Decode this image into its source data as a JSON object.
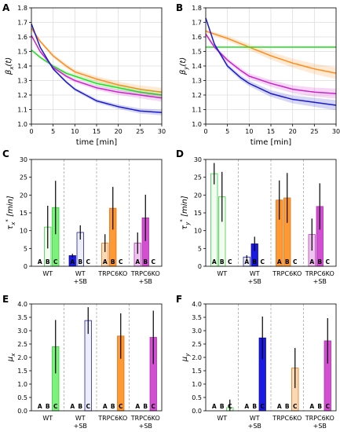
{
  "chart_data": [
    {
      "panel": "A",
      "type": "line",
      "xlabel": "time [min]",
      "ylabel": "β_x(t)",
      "xlim": [
        0,
        30
      ],
      "ylim": [
        1.0,
        1.8
      ],
      "xticks": [
        "0",
        "5",
        "10",
        "15",
        "20",
        "25",
        "30"
      ],
      "yticks": [
        "1.0",
        "1.1",
        "1.2",
        "1.3",
        "1.4",
        "1.5",
        "1.6",
        "1.7",
        "1.8"
      ],
      "grid": true,
      "series": [
        {
          "color": "#ff8c1a",
          "points": [
            [
              0,
              1.66
            ],
            [
              2,
              1.57
            ],
            [
              5,
              1.47
            ],
            [
              8,
              1.4
            ],
            [
              10,
              1.36
            ],
            [
              15,
              1.31
            ],
            [
              20,
              1.27
            ],
            [
              25,
              1.24
            ],
            [
              30,
              1.22
            ]
          ],
          "band": 0.03
        },
        {
          "color": "#22dd22",
          "points": [
            [
              0,
              1.51
            ],
            [
              2,
              1.46
            ],
            [
              5,
              1.4
            ],
            [
              8,
              1.35
            ],
            [
              10,
              1.33
            ],
            [
              15,
              1.28
            ],
            [
              20,
              1.25
            ],
            [
              25,
              1.22
            ],
            [
              30,
              1.2
            ]
          ],
          "band": 0.025
        },
        {
          "color": "#cc22cc",
          "points": [
            [
              0,
              1.61
            ],
            [
              2,
              1.5
            ],
            [
              5,
              1.39
            ],
            [
              8,
              1.33
            ],
            [
              10,
              1.3
            ],
            [
              15,
              1.25
            ],
            [
              20,
              1.22
            ],
            [
              25,
              1.2
            ],
            [
              30,
              1.18
            ]
          ],
          "band": 0.025
        },
        {
          "color": "#1a1acc",
          "points": [
            [
              0,
              1.69
            ],
            [
              2,
              1.53
            ],
            [
              5,
              1.38
            ],
            [
              8,
              1.29
            ],
            [
              10,
              1.24
            ],
            [
              15,
              1.16
            ],
            [
              20,
              1.12
            ],
            [
              25,
              1.09
            ],
            [
              30,
              1.08
            ]
          ],
          "band": 0.02
        }
      ]
    },
    {
      "panel": "B",
      "type": "line",
      "xlabel": "time [min]",
      "ylabel": "β_y(t)",
      "xlim": [
        0,
        30
      ],
      "ylim": [
        1.0,
        1.8
      ],
      "xticks": [
        "0",
        "5",
        "10",
        "15",
        "20",
        "25",
        "30"
      ],
      "yticks": [
        "1.0",
        "1.1",
        "1.2",
        "1.3",
        "1.4",
        "1.5",
        "1.6",
        "1.7",
        "1.8"
      ],
      "grid": true,
      "series": [
        {
          "color": "#ff8c1a",
          "points": [
            [
              0,
              1.64
            ],
            [
              5,
              1.59
            ],
            [
              10,
              1.53
            ],
            [
              15,
              1.47
            ],
            [
              20,
              1.42
            ],
            [
              25,
              1.38
            ],
            [
              30,
              1.35
            ]
          ],
          "band": 0.04
        },
        {
          "color": "#22dd22",
          "points": [
            [
              0,
              1.53
            ],
            [
              30,
              1.53
            ]
          ],
          "band": 0.005
        },
        {
          "color": "#cc22cc",
          "points": [
            [
              0,
              1.62
            ],
            [
              2,
              1.53
            ],
            [
              5,
              1.44
            ],
            [
              8,
              1.37
            ],
            [
              10,
              1.33
            ],
            [
              15,
              1.28
            ],
            [
              20,
              1.24
            ],
            [
              25,
              1.22
            ],
            [
              30,
              1.21
            ]
          ],
          "band": 0.035
        },
        {
          "color": "#1a1acc",
          "points": [
            [
              0,
              1.73
            ],
            [
              2,
              1.55
            ],
            [
              5,
              1.4
            ],
            [
              8,
              1.32
            ],
            [
              10,
              1.28
            ],
            [
              15,
              1.21
            ],
            [
              20,
              1.17
            ],
            [
              25,
              1.15
            ],
            [
              30,
              1.13
            ]
          ],
          "band": 0.035
        }
      ]
    },
    {
      "panel": "C",
      "type": "bar",
      "ylabel": "τ_x* [min]",
      "ylim": [
        0,
        30
      ],
      "yticks": [
        "0",
        "5",
        "10",
        "15",
        "20",
        "25",
        "30"
      ],
      "groups": [
        "WT",
        "WT\n+SB",
        "TRPC6KO",
        "TRPC6KO\n+SB"
      ],
      "bar_letters": [
        "A",
        "B",
        "C"
      ],
      "values": [
        [
          0,
          11,
          16.5
        ],
        [
          3,
          9.5,
          0
        ],
        [
          6.5,
          16.3,
          0
        ],
        [
          6.5,
          13.6,
          0
        ]
      ],
      "errors": [
        [
          0,
          6,
          7.5
        ],
        [
          0.5,
          2,
          0
        ],
        [
          2.5,
          6,
          0
        ],
        [
          3,
          6.5,
          0
        ]
      ]
    },
    {
      "panel": "D",
      "type": "bar",
      "ylabel": "τ_y* [min]",
      "ylim": [
        0,
        30
      ],
      "yticks": [
        "0",
        "5",
        "10",
        "15",
        "20",
        "25",
        "30"
      ],
      "groups": [
        "WT",
        "WT\n+SB",
        "TRPC6KO",
        "TRPC6KO\n+SB"
      ],
      "bar_letters": [
        "A",
        "B",
        "C"
      ],
      "values": [
        [
          26,
          19.5,
          0
        ],
        [
          2.6,
          6.3,
          0
        ],
        [
          18.6,
          19.2,
          0
        ],
        [
          8.9,
          16.8,
          0
        ]
      ],
      "errors": [
        [
          3,
          7,
          0
        ],
        [
          0.5,
          2,
          0
        ],
        [
          5.5,
          7,
          0
        ],
        [
          4.5,
          6.5,
          0
        ]
      ]
    },
    {
      "panel": "E",
      "type": "bar",
      "ylabel": "μ_x",
      "ylim": [
        0,
        4.0
      ],
      "yticks": [
        "0.0",
        "0.5",
        "1.0",
        "1.5",
        "2.0",
        "2.5",
        "3.0",
        "3.5",
        "4.0"
      ],
      "groups": [
        "WT",
        "WT\n+SB",
        "TRPC6KO",
        "TRPC6KO\n+SB"
      ],
      "bar_letters": [
        "A",
        "B",
        "C"
      ],
      "values": [
        [
          0,
          0,
          2.4
        ],
        [
          0,
          0,
          3.38
        ],
        [
          0,
          0,
          2.8
        ],
        [
          0,
          0,
          2.75
        ]
      ],
      "errors": [
        [
          0,
          0,
          1.0
        ],
        [
          0,
          0,
          0.5
        ],
        [
          0,
          0,
          0.85
        ],
        [
          0,
          0,
          1.0
        ]
      ]
    },
    {
      "panel": "F",
      "type": "bar",
      "ylabel": "μ_y",
      "ylim": [
        0,
        4.0
      ],
      "yticks": [
        "0.0",
        "0.5",
        "1.0",
        "1.5",
        "2.0",
        "2.5",
        "3.0",
        "3.5",
        "4.0"
      ],
      "groups": [
        "WT",
        "WT\n+SB",
        "TRPC6KO",
        "TRPC6KO\n+SB"
      ],
      "bar_letters": [
        "A",
        "B",
        "C"
      ],
      "values": [
        [
          0,
          0,
          0.12
        ],
        [
          0,
          0,
          2.73
        ],
        [
          0,
          0,
          1.6
        ],
        [
          0,
          0,
          2.62
        ]
      ],
      "errors": [
        [
          0,
          0,
          0.3
        ],
        [
          0,
          0,
          0.8
        ],
        [
          0,
          0,
          0.75
        ],
        [
          0,
          0,
          0.85
        ]
      ]
    }
  ],
  "group_styles": [
    {
      "fill": "#7ef07e",
      "stroke": "#22cc22",
      "light_fill": "#f2fcf2"
    },
    {
      "fill": "#1a1ae0",
      "stroke": "#0000aa",
      "light_fill": "#eeeefa"
    },
    {
      "fill": "#ff9933",
      "stroke": "#dd6600",
      "light_fill": "#fbd9b5"
    },
    {
      "fill": "#d24fd2",
      "stroke": "#aa22aa",
      "light_fill": "#edc5ed"
    }
  ]
}
